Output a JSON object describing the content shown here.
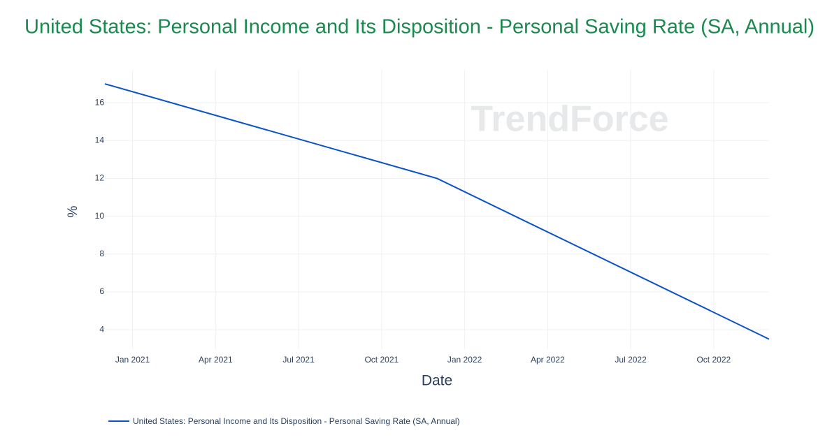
{
  "chart_data": {
    "type": "line",
    "title": "United States: Personal Income and Its Disposition - Personal Saving Rate (SA, Annual)",
    "watermark": "TrendForce",
    "x_label": "Date",
    "y_label": "%",
    "x": [
      "2020-12",
      "2021-12",
      "2022-12"
    ],
    "series": [
      {
        "name": "United States: Personal Income and Its Disposition - Personal Saving Rate (SA, Annual)",
        "color": "#0a52c9",
        "values": [
          17.0,
          12.0,
          3.5
        ]
      }
    ],
    "xlim": [
      "2020-12",
      "2022-12"
    ],
    "xticks": [
      {
        "value": "2021-01",
        "label": "Jan 2021"
      },
      {
        "value": "2021-04",
        "label": "Apr 2021"
      },
      {
        "value": "2021-07",
        "label": "Jul 2021"
      },
      {
        "value": "2021-10",
        "label": "Oct 2021"
      },
      {
        "value": "2022-01",
        "label": "Jan 2022"
      },
      {
        "value": "2022-04",
        "label": "Apr 2022"
      },
      {
        "value": "2022-07",
        "label": "Jul 2022"
      },
      {
        "value": "2022-10",
        "label": "Oct 2022"
      }
    ],
    "ylim": [
      2.97,
      17.74
    ],
    "yticks": [
      4,
      6,
      8,
      10,
      12,
      14,
      16
    ],
    "grid": true,
    "legend": "bottom-left"
  }
}
